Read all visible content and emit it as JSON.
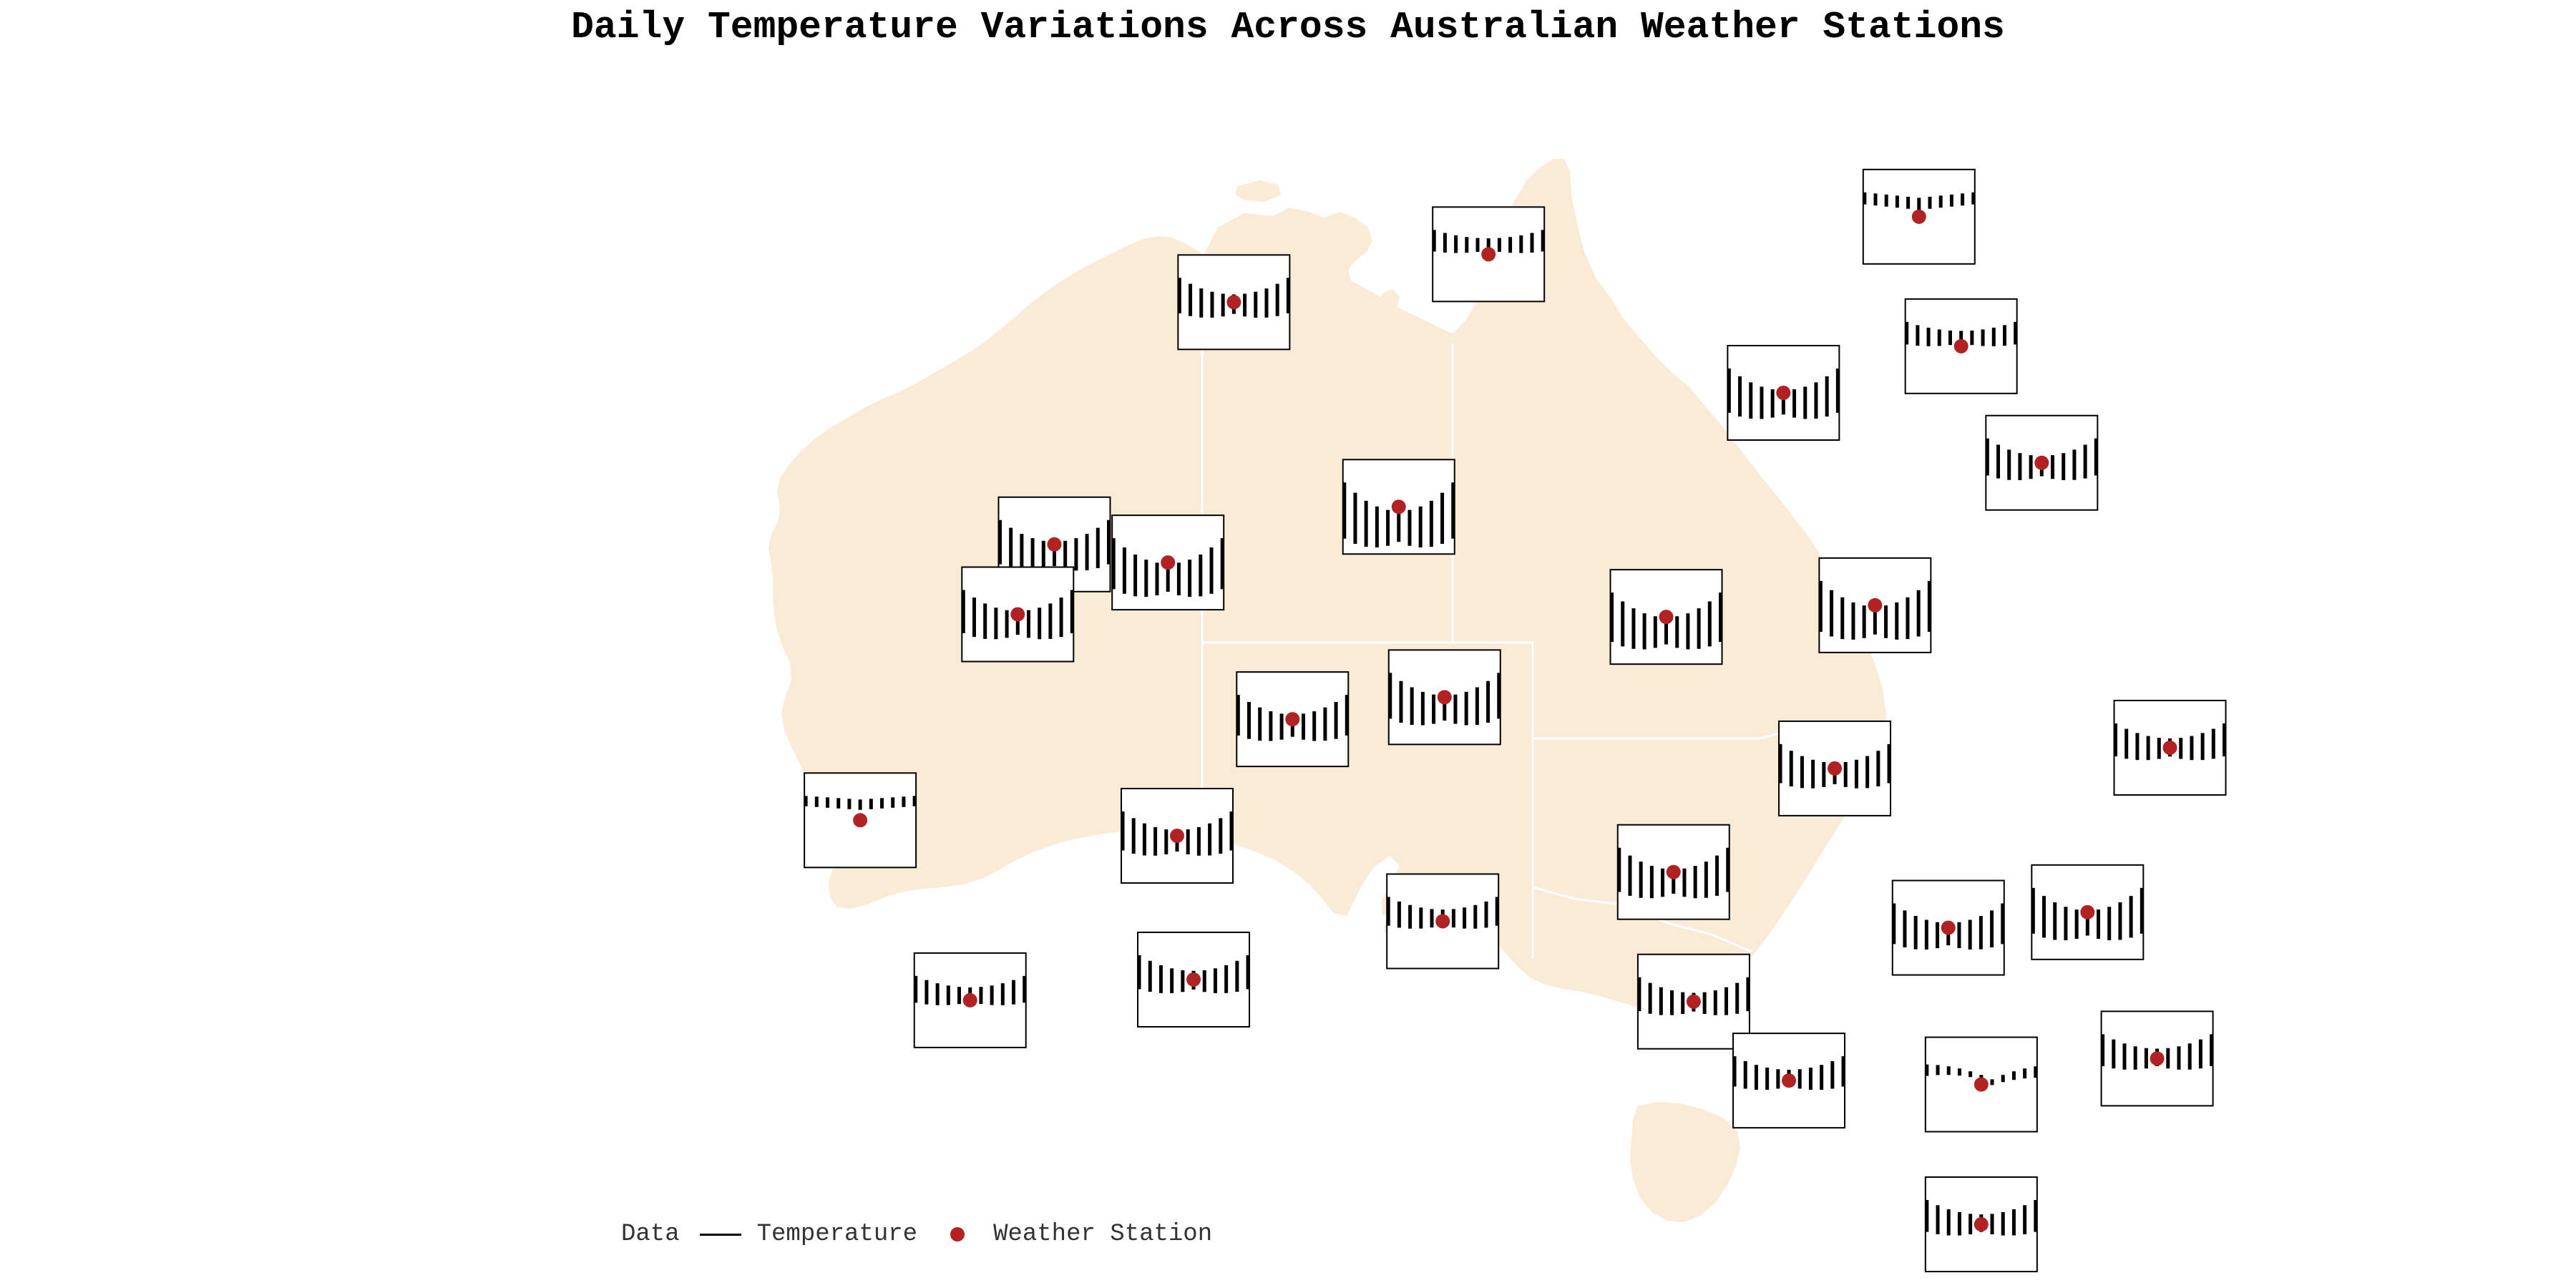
{
  "title": "Daily Temperature Variations Across Australian Weather Stations",
  "legend": {
    "heading": "Data",
    "items": [
      {
        "label": "Temperature",
        "symbol": "line",
        "color": "#000000"
      },
      {
        "label": "Weather Station",
        "symbol": "dot",
        "color": "#b22222"
      }
    ]
  },
  "colors": {
    "land": "#faebd7",
    "state_borders": "#ffffff",
    "station_marker": "#b22222",
    "temperature_bars": "#000000",
    "inset_border": "#000000",
    "inset_background": "#ffffff"
  },
  "map": {
    "region": "Australia",
    "layers": [
      "land",
      "state-borders",
      "temperature-insets",
      "weather-stations"
    ]
  },
  "chart_data": {
    "type": "map-inset-bars",
    "description_of_encoding": "Each weather station marker carries a small inset of vertical temperature bars; bar length grows with distance from the inset centre, giving a V/U-shaped profile.",
    "stations": [
      {
        "lon": 131.95,
        "lat": -11.4,
        "amplitude": 0.28,
        "shape": "v"
      },
      {
        "lon": 143.7,
        "lat": -9.95,
        "amplitude": 0.38,
        "shape": "flat"
      },
      {
        "lon": 125.0,
        "lat": -13.25,
        "amplitude": 0.55,
        "shape": "v"
      },
      {
        "lon": 144.85,
        "lat": -14.95,
        "amplitude": 0.3,
        "shape": "v"
      },
      {
        "lon": 140.0,
        "lat": -16.75,
        "amplitude": 0.72,
        "shape": "v"
      },
      {
        "lon": 147.05,
        "lat": -19.45,
        "amplitude": 0.58,
        "shape": "v"
      },
      {
        "lon": 129.5,
        "lat": -21.15,
        "amplitude": 0.95,
        "shape": "v"
      },
      {
        "lon": 120.1,
        "lat": -22.6,
        "amplitude": 0.72,
        "shape": "v"
      },
      {
        "lon": 123.2,
        "lat": -23.3,
        "amplitude": 0.85,
        "shape": "v"
      },
      {
        "lon": 119.1,
        "lat": -25.3,
        "amplitude": 0.7,
        "shape": "v"
      },
      {
        "lon": 136.8,
        "lat": -25.4,
        "amplitude": 0.82,
        "shape": "v"
      },
      {
        "lon": 142.5,
        "lat": -24.95,
        "amplitude": 0.85,
        "shape": "v"
      },
      {
        "lon": 130.75,
        "lat": -28.5,
        "amplitude": 0.75,
        "shape": "v"
      },
      {
        "lon": 126.6,
        "lat": -29.35,
        "amplitude": 0.65,
        "shape": "v"
      },
      {
        "lon": 150.55,
        "lat": -30.45,
        "amplitude": 0.5,
        "shape": "v"
      },
      {
        "lon": 141.4,
        "lat": -31.25,
        "amplitude": 0.62,
        "shape": "v"
      },
      {
        "lon": 114.8,
        "lat": -33.25,
        "amplitude": 0.25,
        "shape": "flat"
      },
      {
        "lon": 123.45,
        "lat": -33.85,
        "amplitude": 0.62,
        "shape": "v"
      },
      {
        "lon": 137.0,
        "lat": -35.25,
        "amplitude": 0.72,
        "shape": "v"
      },
      {
        "lon": 148.3,
        "lat": -36.8,
        "amplitude": 0.75,
        "shape": "v"
      },
      {
        "lon": 130.7,
        "lat": -37.15,
        "amplitude": 0.42,
        "shape": "v"
      },
      {
        "lon": 144.5,
        "lat": -37.4,
        "amplitude": 0.65,
        "shape": "v"
      },
      {
        "lon": 123.9,
        "lat": -39.4,
        "amplitude": 0.52,
        "shape": "v"
      },
      {
        "lon": 117.8,
        "lat": -40.2,
        "amplitude": 0.38,
        "shape": "v"
      },
      {
        "lon": 137.55,
        "lat": -40.25,
        "amplitude": 0.52,
        "shape": "v"
      },
      {
        "lon": 140.15,
        "lat": -43.3,
        "amplitude": 0.45,
        "shape": "v"
      },
      {
        "lon": 150.2,
        "lat": -42.45,
        "amplitude": 0.48,
        "shape": "v"
      },
      {
        "lon": 145.4,
        "lat": -43.45,
        "amplitude": 0.4,
        "shape": "flat-drop"
      },
      {
        "lon": 145.4,
        "lat": -48.85,
        "amplitude": 0.48,
        "shape": "v"
      }
    ]
  }
}
